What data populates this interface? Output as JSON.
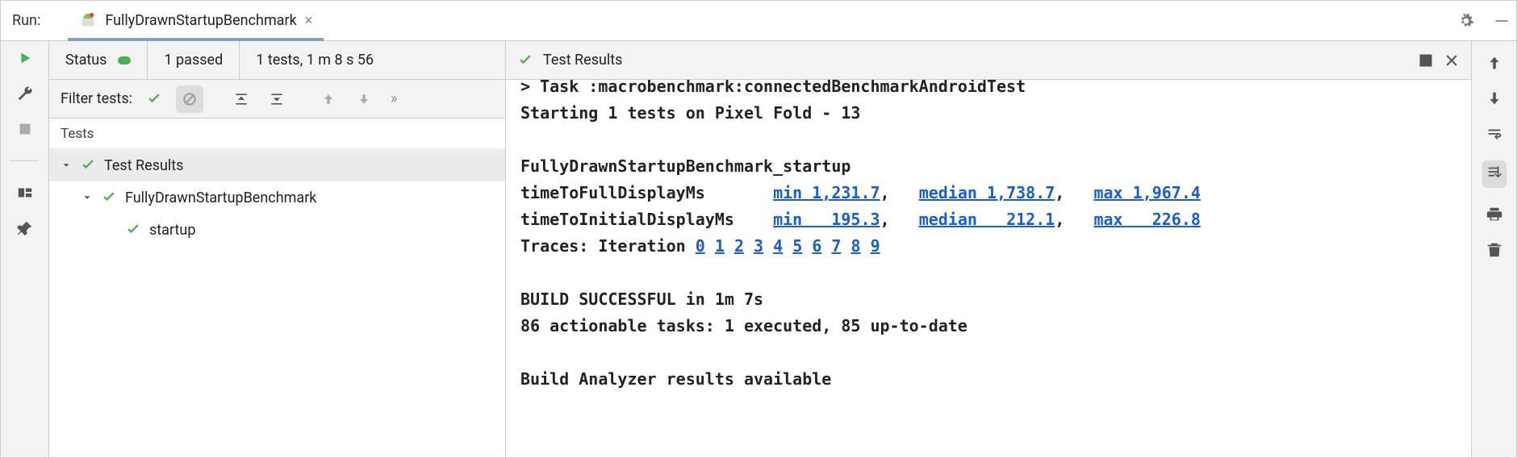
{
  "colors": {
    "green": "#4caf50",
    "link": "#1b5fc4",
    "panel_bg": "#f3f3f3",
    "border": "#cccccc"
  },
  "topbar": {
    "run_label": "Run:",
    "tab_title": "FullyDrawnStartupBenchmark"
  },
  "status": {
    "label": "Status",
    "passed": "1 passed",
    "summary": "1 tests, 1 m 8 s 56"
  },
  "filter": {
    "label": "Filter tests:"
  },
  "tree": {
    "header": "Tests",
    "root": "Test Results",
    "class": "FullyDrawnStartupBenchmark",
    "test": "startup"
  },
  "right_header": {
    "title": "Test Results"
  },
  "console": {
    "line_task": "> Task :macrobenchmark:connectedBenchmarkAndroidTest",
    "line_start": "Starting 1 tests on Pixel Fold - 13",
    "bench_name": "FullyDrawnStartupBenchmark_startup",
    "row1_label": "timeToFullDisplayMs     ",
    "row1_min": "min 1,231.7",
    "row1_med": "median 1,738.7",
    "row1_max": "max 1,967.4",
    "row2_label": "timeToInitialDisplayMs  ",
    "row2_min": "min   195.3",
    "row2_med": "median   212.1",
    "row2_max": "max   226.8",
    "traces_label": "Traces: Iteration ",
    "iterations": [
      "0",
      "1",
      "2",
      "3",
      "4",
      "5",
      "6",
      "7",
      "8",
      "9"
    ],
    "build_ok": "BUILD SUCCESSFUL in 1m 7s",
    "tasks": "86 actionable tasks: 1 executed, 85 up-to-date",
    "analyzer": "Build Analyzer results available"
  }
}
